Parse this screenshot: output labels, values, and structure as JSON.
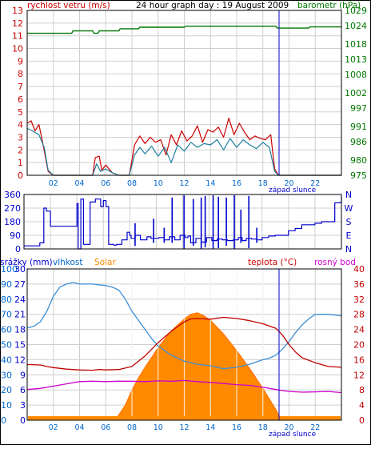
{
  "colors": {
    "wind": "#cc0000",
    "wind_avg": "#1e7fa0",
    "pressure": "#007700",
    "direction": "#0000cc",
    "humidity": "#3b8fd6",
    "solar": "#ff8a00",
    "solar_edge": "#ff6a00",
    "temperature": "#c00000",
    "dew_point": "#cc00cc",
    "rain": "#ff8a00",
    "grid": "#cfcfcf",
    "sunset": "#0000cc",
    "axis_left_bottom": "#0066cc"
  },
  "chart_data": [
    {
      "type": "line",
      "title": "24 hour graph day : 19 August 2009",
      "ylabel_left": "rychlost vetru (m/s)",
      "ylabel_right": "barometr (hPa)",
      "ylim_left": [
        0,
        13
      ],
      "ytick_left": [
        "0",
        "1",
        "2",
        "3",
        "4",
        "5",
        "6",
        "7",
        "8",
        "9",
        "10",
        "11",
        "12",
        "13"
      ],
      "ytick_right": [
        "1029",
        "1024",
        "1018",
        "1013",
        "1008",
        "1002",
        "997",
        "991",
        "986",
        "980",
        "975"
      ],
      "ytick_right_values": [
        1029,
        1024,
        1018,
        1013,
        1008,
        1002,
        997,
        991,
        986,
        980,
        975
      ],
      "ylim_right": [
        975,
        1029
      ],
      "xlim": [
        0,
        24
      ],
      "xtick_labels": [
        "02",
        "04",
        "06",
        "08",
        "10",
        "12",
        "14",
        "16",
        "18",
        "20",
        "22"
      ],
      "annotation": "západ slunce",
      "annotation_x": 19.8,
      "series": [
        {
          "key": "gust",
          "x": [
            0.0,
            0.3,
            0.6,
            0.9,
            1.2,
            1.6,
            2.0,
            3.0,
            4.0,
            5.0,
            5.2,
            5.5,
            5.7,
            6.0,
            6.5,
            7.0,
            7.8,
            8.2,
            8.6,
            9.0,
            9.4,
            9.8,
            10.2,
            10.6,
            11.0,
            11.4,
            11.8,
            12.2,
            12.6,
            13.0,
            13.4,
            13.8,
            14.2,
            14.6,
            15.0,
            15.4,
            15.8,
            16.2,
            16.6,
            17.0,
            17.4,
            17.8,
            18.2,
            18.6,
            18.9,
            19.2,
            20.0,
            22.0,
            24.0
          ],
          "y": [
            4.1,
            4.3,
            3.5,
            4.0,
            2.5,
            0.3,
            0,
            0,
            0,
            0,
            1.4,
            1.5,
            0.4,
            0.8,
            0.2,
            0,
            0,
            2.4,
            3.1,
            2.5,
            3.0,
            2.6,
            2.8,
            1.6,
            3.2,
            2.4,
            3.5,
            2.7,
            3.1,
            3.9,
            2.6,
            3.6,
            3.4,
            3.8,
            3.0,
            4.5,
            3.2,
            4.1,
            3.4,
            2.8,
            3.1,
            2.9,
            2.8,
            3.2,
            0.5,
            0,
            0,
            0,
            0
          ]
        },
        {
          "key": "average",
          "x": [
            0.0,
            0.4,
            0.9,
            1.3,
            1.6,
            2.0,
            3.0,
            4.0,
            5.0,
            5.3,
            5.6,
            6.0,
            6.5,
            7.0,
            7.8,
            8.2,
            8.6,
            9.0,
            9.5,
            10.0,
            10.5,
            11.0,
            11.5,
            12.0,
            12.5,
            13.0,
            13.5,
            14.0,
            14.5,
            15.0,
            15.5,
            16.0,
            16.5,
            17.0,
            17.5,
            18.0,
            18.5,
            18.9,
            19.2,
            20.0,
            22.0,
            24.0
          ],
          "y": [
            3.7,
            3.5,
            3.2,
            2.2,
            0.4,
            0,
            0,
            0,
            0,
            0.9,
            0.3,
            0.5,
            0.2,
            0,
            0,
            1.6,
            2.2,
            1.7,
            2.3,
            1.5,
            2.2,
            1.0,
            2.4,
            1.9,
            2.6,
            2.2,
            2.5,
            2.4,
            2.8,
            2.0,
            2.9,
            2.2,
            2.8,
            2.4,
            2.1,
            2.6,
            2.2,
            0.3,
            0,
            0,
            0,
            0
          ]
        },
        {
          "key": "pressure",
          "axis": "right",
          "x": [
            0,
            3.4,
            3.5,
            5.0,
            5.1,
            5.4,
            5.5,
            7.0,
            7.1,
            8.5,
            8.6,
            12.0,
            12.1,
            19.0,
            19.1,
            21.5,
            21.6,
            24
          ],
          "y": [
            1021.5,
            1021.5,
            1022.3,
            1022.3,
            1021.5,
            1021.5,
            1022.3,
            1022.3,
            1023.0,
            1023.0,
            1023.5,
            1023.5,
            1023.8,
            1023.8,
            1023.2,
            1023.2,
            1023.6,
            1023.6
          ]
        }
      ]
    },
    {
      "type": "line",
      "ylim": [
        0,
        360
      ],
      "ytick_left": [
        "360",
        "270",
        "180",
        "90",
        "0"
      ],
      "ytick_right": [
        "N",
        "W",
        "S",
        "E",
        "N"
      ],
      "xlim": [
        0,
        24
      ],
      "series": [
        {
          "key": "direction",
          "x": [
            0.0,
            0.6,
            1.2,
            1.5,
            1.7,
            2.0,
            2.2,
            3.8,
            4.0,
            4.1,
            4.3,
            4.5,
            5.0,
            5.4,
            5.8,
            6.0,
            6.2,
            6.4,
            6.8,
            7.0,
            7.4,
            7.8,
            8.0,
            8.1,
            8.4,
            8.8,
            9.3,
            9.6,
            10.2,
            10.6,
            11.0,
            11.4,
            11.8,
            12.2,
            12.4,
            12.6,
            13.0,
            13.4,
            13.8,
            14.2,
            14.6,
            15.0,
            15.4,
            15.8,
            16.2,
            16.5,
            16.8,
            17.2,
            17.6,
            18.0,
            18.5,
            19.0,
            20.0,
            20.5,
            21.0,
            22.0,
            22.5,
            23.0,
            23.5,
            24.0
          ],
          "y": [
            20,
            20,
            40,
            270,
            250,
            150,
            150,
            150,
            300,
            0,
            330,
            30,
            310,
            330,
            280,
            320,
            280,
            30,
            25,
            30,
            60,
            110,
            90,
            70,
            90,
            60,
            80,
            70,
            75,
            60,
            80,
            60,
            90,
            75,
            85,
            40,
            70,
            45,
            75,
            55,
            65,
            60,
            55,
            60,
            75,
            55,
            70,
            65,
            60,
            75,
            85,
            90,
            120,
            135,
            160,
            170,
            180,
            180,
            305,
            350
          ]
        }
      ],
      "spikes": [
        {
          "x": 8.4,
          "from": 20,
          "to": 170
        },
        {
          "x": 9.8,
          "from": 40,
          "to": 200
        },
        {
          "x": 10.6,
          "from": 40,
          "to": 140
        },
        {
          "x": 11.2,
          "from": 40,
          "to": 340
        },
        {
          "x": 12.1,
          "from": 0,
          "to": 355
        },
        {
          "x": 12.8,
          "from": 20,
          "to": 330
        },
        {
          "x": 13.4,
          "from": 0,
          "to": 340
        },
        {
          "x": 13.7,
          "from": 10,
          "to": 350
        },
        {
          "x": 14.3,
          "from": 0,
          "to": 355
        },
        {
          "x": 14.7,
          "from": 5,
          "to": 345
        },
        {
          "x": 15.3,
          "from": 20,
          "to": 340
        },
        {
          "x": 15.9,
          "from": 0,
          "to": 355
        },
        {
          "x": 16.4,
          "from": 40,
          "to": 260
        },
        {
          "x": 17.0,
          "from": 5,
          "to": 350
        },
        {
          "x": 17.6,
          "from": 40,
          "to": 140
        }
      ]
    },
    {
      "type": "area",
      "ylabel_left_1": "srážky (mm)",
      "ylabel_left_2": "vlhkost",
      "ylabel_left_3": "Solar",
      "ylabel_right_1": "teplota (°C)",
      "ylabel_right_2": "rosný bod",
      "ytick_left_1": [
        "100",
        "90",
        "80",
        "70",
        "60",
        "50",
        "40",
        "30",
        "20",
        "10",
        "0"
      ],
      "ytick_left_2": [
        "30",
        "27",
        "24",
        "21",
        "18",
        "15",
        "12",
        "9",
        "6",
        "3",
        "0"
      ],
      "ytick_right": [
        "40",
        "36",
        "32",
        "28",
        "24",
        "20",
        "16",
        "12",
        "8",
        "4",
        "0"
      ],
      "ylim_humidity": [
        0,
        100
      ],
      "ylim_temperature": [
        0,
        40
      ],
      "xlim": [
        0,
        24
      ],
      "xtick_labels": [
        "02",
        "04",
        "06",
        "08",
        "10",
        "12",
        "14",
        "16",
        "18",
        "20",
        "22"
      ],
      "annotation": "západ slunce",
      "annotation_x": 19.8,
      "series": [
        {
          "key": "humidity",
          "x": [
            0,
            0.5,
            1.0,
            1.5,
            2.0,
            2.5,
            3.0,
            3.5,
            4.0,
            5.0,
            6.0,
            6.5,
            7.0,
            7.5,
            8.0,
            8.5,
            9.0,
            9.5,
            10.0,
            11.0,
            12.0,
            13.0,
            14.0,
            15.0,
            16.0,
            17.0,
            18.0,
            18.5,
            19.0,
            19.5,
            20.0,
            20.5,
            21.0,
            21.5,
            22.0,
            23.0,
            24.0
          ],
          "y": [
            61,
            62,
            65,
            72,
            82,
            88,
            90,
            91,
            90,
            90,
            89,
            88,
            86,
            80,
            72,
            66,
            60,
            54,
            49,
            43,
            39,
            37,
            36,
            34,
            35,
            37,
            40,
            41,
            43,
            47,
            52,
            58,
            63,
            67,
            70,
            70,
            69
          ]
        },
        {
          "key": "temperature",
          "x": [
            0,
            1.0,
            1.5,
            2.0,
            3.0,
            4.0,
            5.0,
            5.5,
            6.0,
            7.0,
            8.0,
            9.0,
            10.0,
            11.0,
            12.0,
            12.5,
            13.0,
            14.0,
            15.0,
            16.0,
            17.0,
            18.0,
            19.0,
            19.5,
            20.0,
            20.5,
            21.0,
            22.0,
            23.0,
            24.0
          ],
          "y": [
            14.7,
            14.6,
            14.2,
            13.9,
            13.5,
            13.3,
            13.2,
            13.4,
            13.3,
            13.4,
            14.2,
            17.0,
            20.5,
            23.5,
            26.0,
            26.8,
            26.9,
            26.7,
            27.2,
            26.9,
            26.3,
            25.5,
            24.3,
            22.5,
            20.0,
            18.0,
            16.5,
            15.2,
            14.2,
            14.0
          ]
        },
        {
          "key": "dew_point",
          "x": [
            0,
            1.0,
            2.0,
            3.0,
            4.0,
            5.0,
            6.0,
            7.0,
            8.0,
            9.0,
            10.0,
            11.0,
            12.0,
            13.0,
            14.0,
            15.0,
            16.0,
            17.0,
            18.0,
            19.0,
            20.0,
            21.0,
            22.0,
            23.0,
            24.0
          ],
          "y": [
            8.1,
            8.4,
            9.0,
            9.6,
            10.2,
            10.3,
            10.2,
            10.3,
            10.3,
            10.2,
            10.4,
            10.3,
            10.5,
            10.2,
            10.0,
            9.7,
            9.4,
            9.2,
            8.7,
            8.1,
            7.6,
            7.4,
            7.5,
            7.6,
            7.3
          ]
        },
        {
          "key": "solar",
          "x": [
            0,
            6.5,
            6.8,
            7.5,
            8.0,
            8.5,
            9.0,
            10.0,
            11.0,
            12.0,
            12.5,
            13.0,
            13.5,
            14.0,
            15.0,
            16.0,
            17.0,
            18.0,
            18.5,
            19.0,
            19.3,
            19.6,
            24.0
          ],
          "y": [
            0,
            0,
            1,
            10,
            20,
            28,
            35,
            48,
            59,
            67,
            70,
            71,
            69,
            66,
            57,
            46,
            34,
            21,
            14,
            7,
            2,
            0,
            0
          ]
        },
        {
          "key": "rain",
          "x": [
            0,
            24
          ],
          "y": [
            0,
            0
          ]
        }
      ]
    }
  ]
}
